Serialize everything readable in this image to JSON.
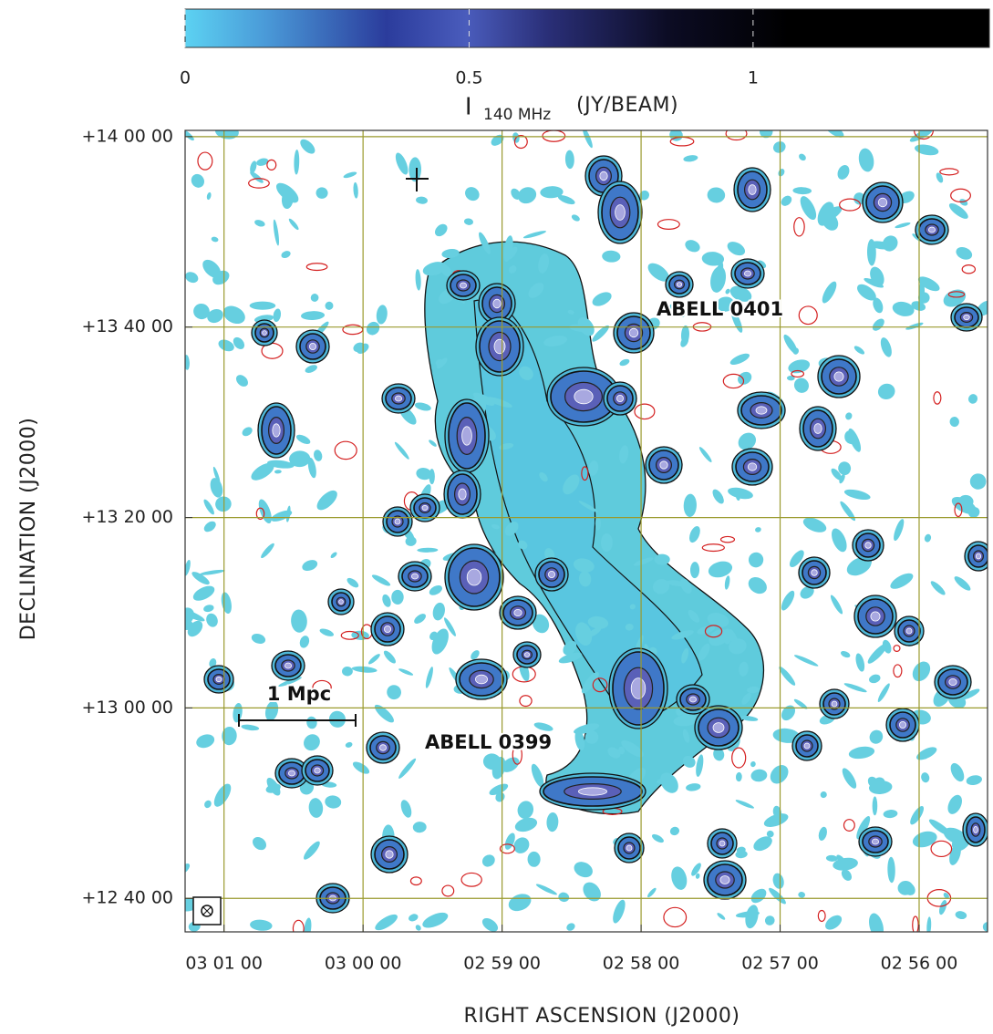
{
  "chart_data": {
    "type": "radio-map",
    "xlabel": "RIGHT ASCENSION (J2000)",
    "ylabel": "DECLINATION (J2000)",
    "xlim": [
      45.32,
      43.877
    ],
    "ylim": [
      12.608,
      14.011
    ],
    "xticks": [
      {
        "value": 45.25,
        "label": "03 01 00"
      },
      {
        "value": 45.0,
        "label": "03 00 00"
      },
      {
        "value": 44.75,
        "label": "02 59 00"
      },
      {
        "value": 44.5,
        "label": "02 58 00"
      },
      {
        "value": 44.25,
        "label": "02 57 00"
      },
      {
        "value": 44.0,
        "label": "02 56 00"
      }
    ],
    "yticks": [
      {
        "value": 14.0,
        "label": "+14 00 00"
      },
      {
        "value": 13.6667,
        "label": "+13 40 00"
      },
      {
        "value": 13.3333,
        "label": "+13 20 00"
      },
      {
        "value": 13.0,
        "label": "+13 00 00"
      },
      {
        "value": 12.6667,
        "label": "+12 40 00"
      }
    ],
    "grid": true,
    "grid_color": "#9a9a2e",
    "colorbar": {
      "label": "I",
      "label_sub": "140 MHz",
      "label_unit": "(JY/BEAM)",
      "lim": [
        0,
        1.416
      ],
      "ticks": [
        0,
        0.5,
        1
      ]
    },
    "annotations": [
      "ABELL 0401",
      "ABELL 0399",
      "1 Mpc"
    ]
  }
}
